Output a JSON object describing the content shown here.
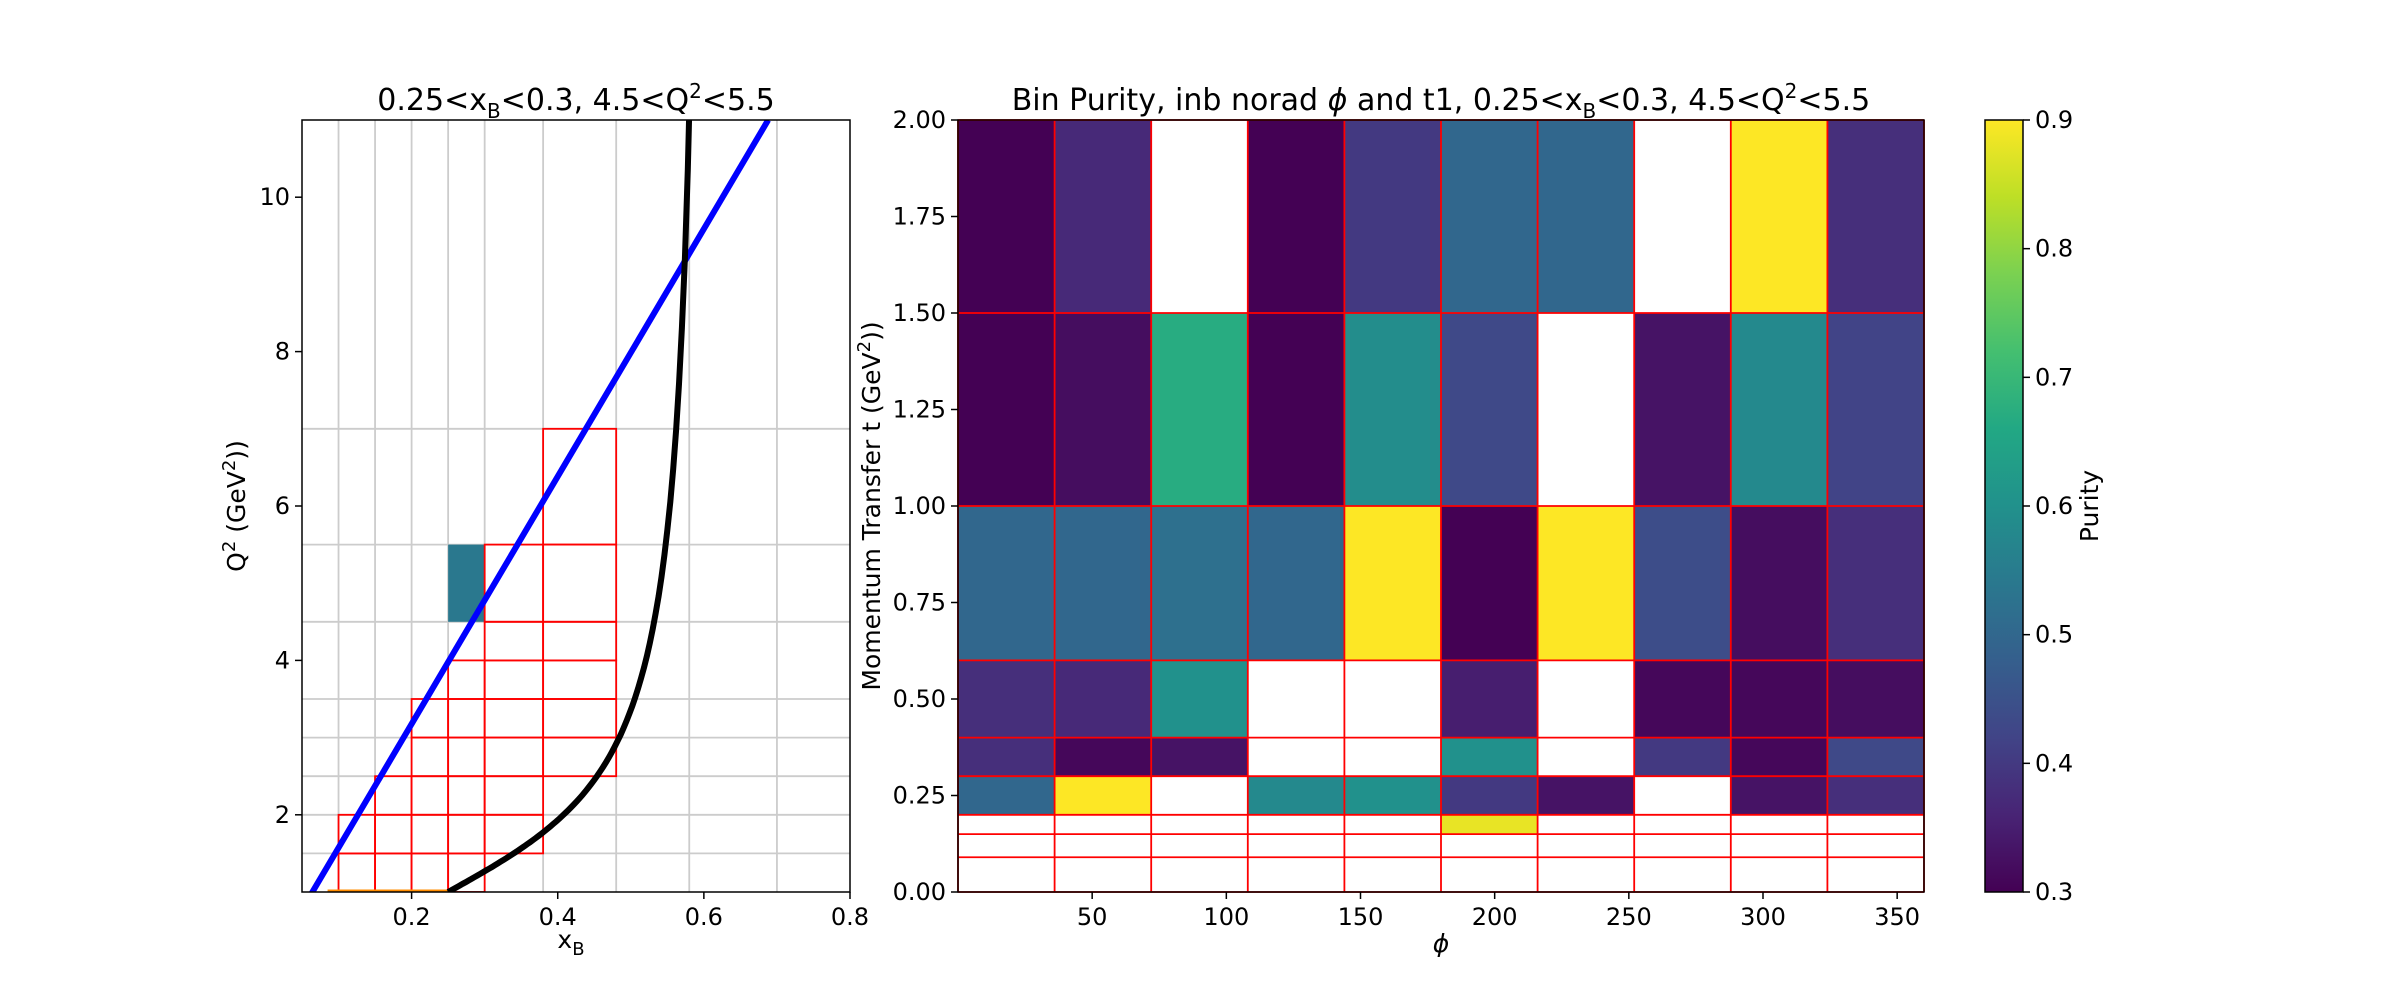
{
  "chart_data": [
    {
      "type": "scatter",
      "title_parts": [
        "0.25<x",
        "B",
        "<0.3, 4.5<Q",
        "2",
        "<5.5"
      ],
      "xlabel_parts": [
        "x",
        "B"
      ],
      "ylabel_parts": [
        "Q",
        "2",
        " (GeV",
        "2",
        "))"
      ],
      "xlim": [
        0.05,
        0.8
      ],
      "ylim": [
        1,
        11
      ],
      "xticks": [
        0.2,
        0.4,
        0.6,
        0.8
      ],
      "xtick_labels": [
        "0.2",
        "0.4",
        "0.6",
        "0.8"
      ],
      "yticks": [
        2,
        4,
        6,
        8,
        10
      ],
      "ytick_labels": [
        "2",
        "4",
        "6",
        "8",
        "10"
      ],
      "gray_grid_x": [
        0.1,
        0.15,
        0.2,
        0.25,
        0.3,
        0.38,
        0.48,
        0.58,
        0.7
      ],
      "gray_grid_y": [
        1.5,
        2.0,
        2.5,
        3.0,
        3.5,
        4.5,
        5.5,
        7.0
      ],
      "highlight_cell": {
        "x": [
          0.25,
          0.3
        ],
        "y": [
          4.5,
          5.5
        ],
        "color": "#2a788e"
      },
      "red_grid_x": [
        0.1,
        0.15,
        0.2,
        0.25,
        0.3,
        0.38,
        0.48,
        0.58
      ],
      "red_grid_y": [
        1.0,
        1.5,
        2.0,
        2.5,
        3.0,
        3.5,
        4.0,
        4.5,
        5.5,
        7.0
      ],
      "blue_line": {
        "x": [
          0.058,
          0.688
        ],
        "y": [
          0.9,
          11.0
        ],
        "color": "#0000ff"
      },
      "black_curve": {
        "x0": 0.25,
        "xmax": 0.8,
        "color": "#000000"
      },
      "bottom_segment": {
        "x": [
          0.085,
          0.25
        ],
        "y": 1.0,
        "color": "#ff8c00"
      }
    },
    {
      "type": "heatmap",
      "title_parts": [
        "Bin Purity, inb norad ",
        "ϕ",
        " and t1, 0.25<x",
        "B",
        "<0.3, 4.5<Q",
        "2",
        "<5.5"
      ],
      "xlabel": "ϕ",
      "ylabel_parts": [
        "Momentum Transfer t (GeV",
        "2",
        "))"
      ],
      "xlim": [
        0,
        360
      ],
      "ylim": [
        0,
        2
      ],
      "xticks": [
        50,
        100,
        150,
        200,
        250,
        300,
        350
      ],
      "xtick_labels": [
        "50",
        "100",
        "150",
        "200",
        "250",
        "300",
        "350"
      ],
      "yticks": [
        0.0,
        0.25,
        0.5,
        0.75,
        1.0,
        1.25,
        1.5,
        1.75,
        2.0
      ],
      "ytick_labels": [
        "0.00",
        "0.25",
        "0.50",
        "0.75",
        "1.00",
        "1.25",
        "1.50",
        "1.75",
        "2.00"
      ],
      "phi_edges": [
        0,
        36,
        72,
        108,
        144,
        180,
        216,
        252,
        288,
        324,
        360
      ],
      "t_edges": [
        0,
        0.09,
        0.15,
        0.2,
        0.3,
        0.4,
        0.6,
        1.0,
        1.5,
        2.0
      ],
      "purity_rows_bottom_to_top": [
        [
          null,
          null,
          null,
          null,
          null,
          null,
          null,
          null,
          null,
          null
        ],
        [
          null,
          null,
          null,
          null,
          null,
          null,
          null,
          null,
          null,
          null
        ],
        [
          null,
          null,
          null,
          null,
          null,
          0.88,
          null,
          null,
          null,
          null
        ],
        [
          0.5,
          0.9,
          null,
          0.58,
          0.6,
          0.4,
          0.33,
          null,
          0.33,
          0.38
        ],
        [
          0.38,
          0.31,
          0.33,
          null,
          null,
          0.6,
          null,
          0.4,
          0.31,
          0.43
        ],
        [
          0.38,
          0.37,
          0.6,
          null,
          null,
          0.35,
          null,
          0.31,
          0.31,
          0.32
        ],
        [
          0.5,
          0.5,
          0.52,
          0.5,
          0.9,
          0.3,
          0.9,
          0.44,
          0.32,
          0.38
        ],
        [
          0.3,
          0.32,
          0.67,
          0.3,
          0.59,
          0.43,
          null,
          0.33,
          0.58,
          0.42
        ],
        [
          0.3,
          0.37,
          null,
          0.3,
          0.4,
          0.5,
          0.5,
          null,
          0.9,
          0.38
        ]
      ],
      "colorbar": {
        "label": "Purity",
        "vmin": 0.3,
        "vmax": 0.9,
        "ticks": [
          0.3,
          0.4,
          0.5,
          0.6,
          0.7,
          0.8,
          0.9
        ],
        "tick_labels": [
          "0.3",
          "0.4",
          "0.5",
          "0.6",
          "0.7",
          "0.8",
          "0.9"
        ],
        "colormap": "viridis"
      },
      "grid_color": "#ff0000"
    }
  ]
}
